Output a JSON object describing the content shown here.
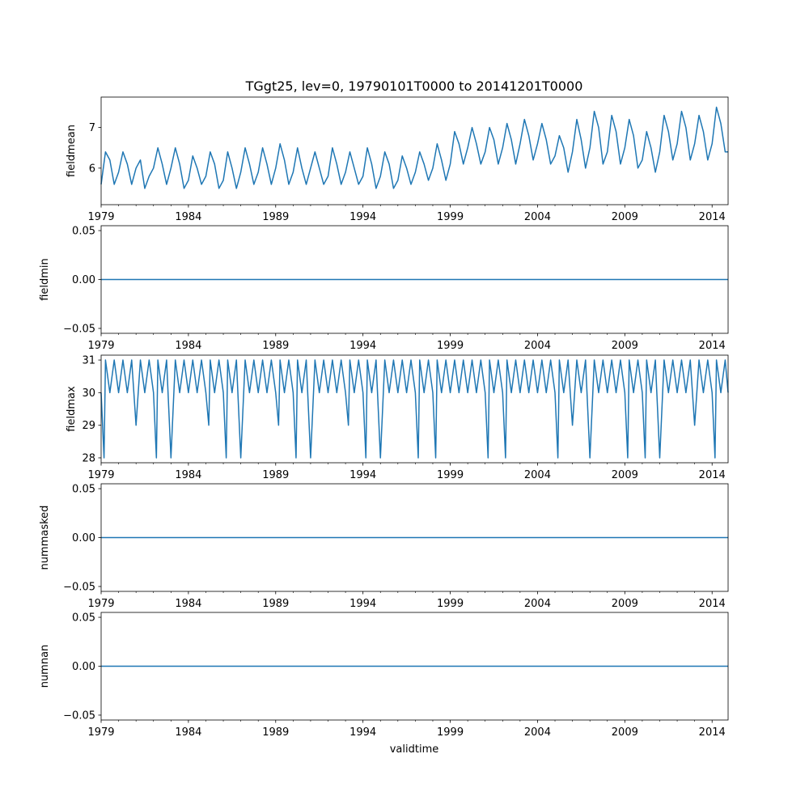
{
  "title": "TGgt25, lev=0, 19790101T0000 to 20141201T0000",
  "xlabel": "validtime",
  "line_color": "#1f77b4",
  "x_range": [
    "1979-01",
    "2014-12"
  ],
  "x_major_ticks": [
    "1979",
    "1984",
    "1989",
    "1994",
    "1999",
    "2004",
    "2009",
    "2014"
  ],
  "chart_data": [
    {
      "type": "line",
      "ylabel": "fieldmean",
      "ylim": [
        5.1,
        7.75
      ],
      "yticks": [
        "6",
        "7"
      ],
      "yticks_values": [
        6,
        7
      ],
      "x": [
        "1979-01",
        "1979-04",
        "1979-07",
        "1979-10",
        "1980-01",
        "1980-04",
        "1980-07",
        "1980-10",
        "1981-01",
        "1981-04",
        "1981-07",
        "1981-10",
        "1982-01",
        "1982-04",
        "1982-07",
        "1982-10",
        "1983-01",
        "1983-04",
        "1983-07",
        "1983-10",
        "1984-01",
        "1984-04",
        "1984-07",
        "1984-10",
        "1985-01",
        "1985-04",
        "1985-07",
        "1985-10",
        "1986-01",
        "1986-04",
        "1986-07",
        "1986-10",
        "1987-01",
        "1987-04",
        "1987-07",
        "1987-10",
        "1988-01",
        "1988-04",
        "1988-07",
        "1988-10",
        "1989-01",
        "1989-04",
        "1989-07",
        "1989-10",
        "1990-01",
        "1990-04",
        "1990-07",
        "1990-10",
        "1991-01",
        "1991-04",
        "1991-07",
        "1991-10",
        "1992-01",
        "1992-04",
        "1992-07",
        "1992-10",
        "1993-01",
        "1993-04",
        "1993-07",
        "1993-10",
        "1994-01",
        "1994-04",
        "1994-07",
        "1994-10",
        "1995-01",
        "1995-04",
        "1995-07",
        "1995-10",
        "1996-01",
        "1996-04",
        "1996-07",
        "1996-10",
        "1997-01",
        "1997-04",
        "1997-07",
        "1997-10",
        "1998-01",
        "1998-04",
        "1998-07",
        "1998-10",
        "1999-01",
        "1999-04",
        "1999-07",
        "1999-10",
        "2000-01",
        "2000-04",
        "2000-07",
        "2000-10",
        "2001-01",
        "2001-04",
        "2001-07",
        "2001-10",
        "2002-01",
        "2002-04",
        "2002-07",
        "2002-10",
        "2003-01",
        "2003-04",
        "2003-07",
        "2003-10",
        "2004-01",
        "2004-04",
        "2004-07",
        "2004-10",
        "2005-01",
        "2005-04",
        "2005-07",
        "2005-10",
        "2006-01",
        "2006-04",
        "2006-07",
        "2006-10",
        "2007-01",
        "2007-04",
        "2007-07",
        "2007-10",
        "2008-01",
        "2008-04",
        "2008-07",
        "2008-10",
        "2009-01",
        "2009-04",
        "2009-07",
        "2009-10",
        "2010-01",
        "2010-04",
        "2010-07",
        "2010-10",
        "2011-01",
        "2011-04",
        "2011-07",
        "2011-10",
        "2012-01",
        "2012-04",
        "2012-07",
        "2012-10",
        "2013-01",
        "2013-04",
        "2013-07",
        "2013-10",
        "2014-01",
        "2014-04",
        "2014-07",
        "2014-10",
        "2014-12"
      ],
      "y": [
        5.6,
        6.4,
        6.2,
        5.6,
        5.9,
        6.4,
        6.1,
        5.6,
        6.0,
        6.2,
        5.5,
        5.8,
        6.0,
        6.5,
        6.1,
        5.6,
        6.0,
        6.5,
        6.1,
        5.5,
        5.7,
        6.3,
        6.0,
        5.6,
        5.8,
        6.4,
        6.1,
        5.5,
        5.7,
        6.4,
        6.0,
        5.5,
        5.9,
        6.5,
        6.1,
        5.6,
        5.9,
        6.5,
        6.1,
        5.6,
        6.0,
        6.6,
        6.2,
        5.6,
        5.9,
        6.5,
        6.0,
        5.6,
        6.0,
        6.4,
        6.0,
        5.6,
        5.8,
        6.5,
        6.1,
        5.6,
        5.9,
        6.4,
        6.0,
        5.6,
        5.8,
        6.5,
        6.1,
        5.5,
        5.8,
        6.4,
        6.1,
        5.5,
        5.7,
        6.3,
        6.0,
        5.6,
        5.9,
        6.4,
        6.1,
        5.7,
        6.0,
        6.6,
        6.2,
        5.7,
        6.1,
        6.9,
        6.6,
        6.1,
        6.5,
        7.0,
        6.6,
        6.1,
        6.4,
        7.0,
        6.7,
        6.1,
        6.5,
        7.1,
        6.7,
        6.1,
        6.6,
        7.2,
        6.8,
        6.2,
        6.6,
        7.1,
        6.7,
        6.1,
        6.3,
        6.8,
        6.5,
        5.9,
        6.4,
        7.2,
        6.7,
        6.0,
        6.5,
        7.4,
        7.0,
        6.1,
        6.4,
        7.3,
        6.9,
        6.1,
        6.5,
        7.2,
        6.8,
        6.0,
        6.2,
        6.9,
        6.5,
        5.9,
        6.4,
        7.3,
        6.9,
        6.2,
        6.6,
        7.4,
        7.0,
        6.2,
        6.6,
        7.3,
        6.9,
        6.2,
        6.6,
        7.5,
        7.1,
        6.4,
        6.4
      ]
    },
    {
      "type": "line",
      "ylabel": "fieldmin",
      "ylim": [
        -0.055,
        0.055
      ],
      "yticks": [
        "−0.05",
        "0.00",
        "0.05"
      ],
      "yticks_values": [
        -0.05,
        0,
        0.05
      ],
      "x": [
        "1979-01",
        "2014-12"
      ],
      "y": [
        0,
        0
      ]
    },
    {
      "type": "line",
      "ylabel": "fieldmax",
      "ylim": [
        27.85,
        31.15
      ],
      "yticks": [
        "28",
        "29",
        "30",
        "31"
      ],
      "yticks_values": [
        28,
        29,
        30,
        31
      ],
      "x": [
        "1979-01",
        "1979-03",
        "1979-04",
        "1979-07",
        "1979-10",
        "1980-01",
        "1980-04",
        "1980-07",
        "1980-10",
        "1981-01",
        "1981-04",
        "1981-07",
        "1981-10",
        "1982-01",
        "1982-03",
        "1982-04",
        "1982-07",
        "1982-10",
        "1983-01",
        "1983-04",
        "1983-07",
        "1983-10",
        "1984-01",
        "1984-04",
        "1984-07",
        "1984-10",
        "1985-01",
        "1985-03",
        "1985-04",
        "1985-07",
        "1985-10",
        "1986-01",
        "1986-03",
        "1986-04",
        "1986-07",
        "1986-10",
        "1987-01",
        "1987-04",
        "1987-07",
        "1987-10",
        "1988-01",
        "1988-04",
        "1988-07",
        "1988-10",
        "1989-01",
        "1989-03",
        "1989-04",
        "1989-07",
        "1989-10",
        "1990-01",
        "1990-03",
        "1990-04",
        "1990-07",
        "1990-10",
        "1991-01",
        "1991-04",
        "1991-07",
        "1991-10",
        "1992-01",
        "1992-04",
        "1992-07",
        "1992-10",
        "1993-01",
        "1993-03",
        "1993-04",
        "1993-07",
        "1993-10",
        "1994-01",
        "1994-03",
        "1994-04",
        "1994-07",
        "1994-10",
        "1995-01",
        "1995-04",
        "1995-07",
        "1995-10",
        "1996-01",
        "1996-04",
        "1996-07",
        "1996-10",
        "1997-01",
        "1997-03",
        "1997-04",
        "1997-07",
        "1997-10",
        "1998-01",
        "1998-03",
        "1998-04",
        "1998-07",
        "1998-10",
        "1999-01",
        "1999-04",
        "1999-07",
        "1999-10",
        "2000-01",
        "2000-04",
        "2000-07",
        "2000-10",
        "2001-01",
        "2001-03",
        "2001-04",
        "2001-07",
        "2001-10",
        "2002-01",
        "2002-03",
        "2002-04",
        "2002-07",
        "2002-10",
        "2003-01",
        "2003-04",
        "2003-07",
        "2003-10",
        "2004-01",
        "2004-04",
        "2004-07",
        "2004-10",
        "2005-01",
        "2005-03",
        "2005-04",
        "2005-07",
        "2005-10",
        "2006-01",
        "2006-04",
        "2006-07",
        "2006-10",
        "2007-01",
        "2007-04",
        "2007-07",
        "2007-10",
        "2008-01",
        "2008-04",
        "2008-07",
        "2008-10",
        "2009-01",
        "2009-03",
        "2009-04",
        "2009-07",
        "2009-10",
        "2010-01",
        "2010-03",
        "2010-04",
        "2010-07",
        "2010-10",
        "2011-01",
        "2011-04",
        "2011-07",
        "2011-10",
        "2012-01",
        "2012-04",
        "2012-07",
        "2012-10",
        "2013-01",
        "2013-04",
        "2013-07",
        "2013-10",
        "2014-01",
        "2014-03",
        "2014-04",
        "2014-07",
        "2014-10",
        "2014-12"
      ],
      "y": [
        30,
        28,
        31,
        30,
        31,
        30,
        31,
        30,
        31,
        29,
        31,
        30,
        31,
        30,
        28,
        31,
        30,
        31,
        28,
        31,
        30,
        31,
        30,
        31,
        30,
        31,
        30,
        29,
        31,
        30,
        31,
        30,
        28,
        31,
        30,
        31,
        28,
        31,
        30,
        31,
        30,
        31,
        30,
        31,
        30,
        29,
        31,
        30,
        31,
        30,
        28,
        31,
        30,
        31,
        28,
        31,
        30,
        31,
        30,
        31,
        30,
        31,
        30,
        29,
        31,
        30,
        31,
        30,
        28,
        31,
        30,
        31,
        28,
        31,
        30,
        31,
        30,
        31,
        30,
        31,
        30,
        28,
        31,
        30,
        31,
        30,
        28,
        31,
        30,
        31,
        30,
        31,
        30,
        31,
        30,
        31,
        30,
        31,
        30,
        28,
        31,
        30,
        31,
        30,
        28,
        31,
        30,
        31,
        30,
        31,
        30,
        31,
        30,
        31,
        30,
        31,
        30,
        28,
        31,
        30,
        31,
        29,
        31,
        30,
        31,
        28,
        31,
        30,
        31,
        30,
        31,
        30,
        31,
        30,
        28,
        31,
        30,
        31,
        30,
        28,
        31,
        30,
        31,
        28,
        31,
        30,
        31,
        30,
        31,
        30,
        31,
        29,
        31,
        30,
        31,
        30,
        28,
        31,
        30,
        31,
        30
      ]
    },
    {
      "type": "line",
      "ylabel": "nummasked",
      "ylim": [
        -0.055,
        0.055
      ],
      "yticks": [
        "−0.05",
        "0.00",
        "0.05"
      ],
      "yticks_values": [
        -0.05,
        0,
        0.05
      ],
      "x": [
        "1979-01",
        "2014-12"
      ],
      "y": [
        0,
        0
      ]
    },
    {
      "type": "line",
      "ylabel": "numnan",
      "ylim": [
        -0.055,
        0.055
      ],
      "yticks": [
        "−0.05",
        "0.00",
        "0.05"
      ],
      "yticks_values": [
        -0.05,
        0,
        0.05
      ],
      "x": [
        "1979-01",
        "2014-12"
      ],
      "y": [
        0,
        0
      ]
    }
  ]
}
